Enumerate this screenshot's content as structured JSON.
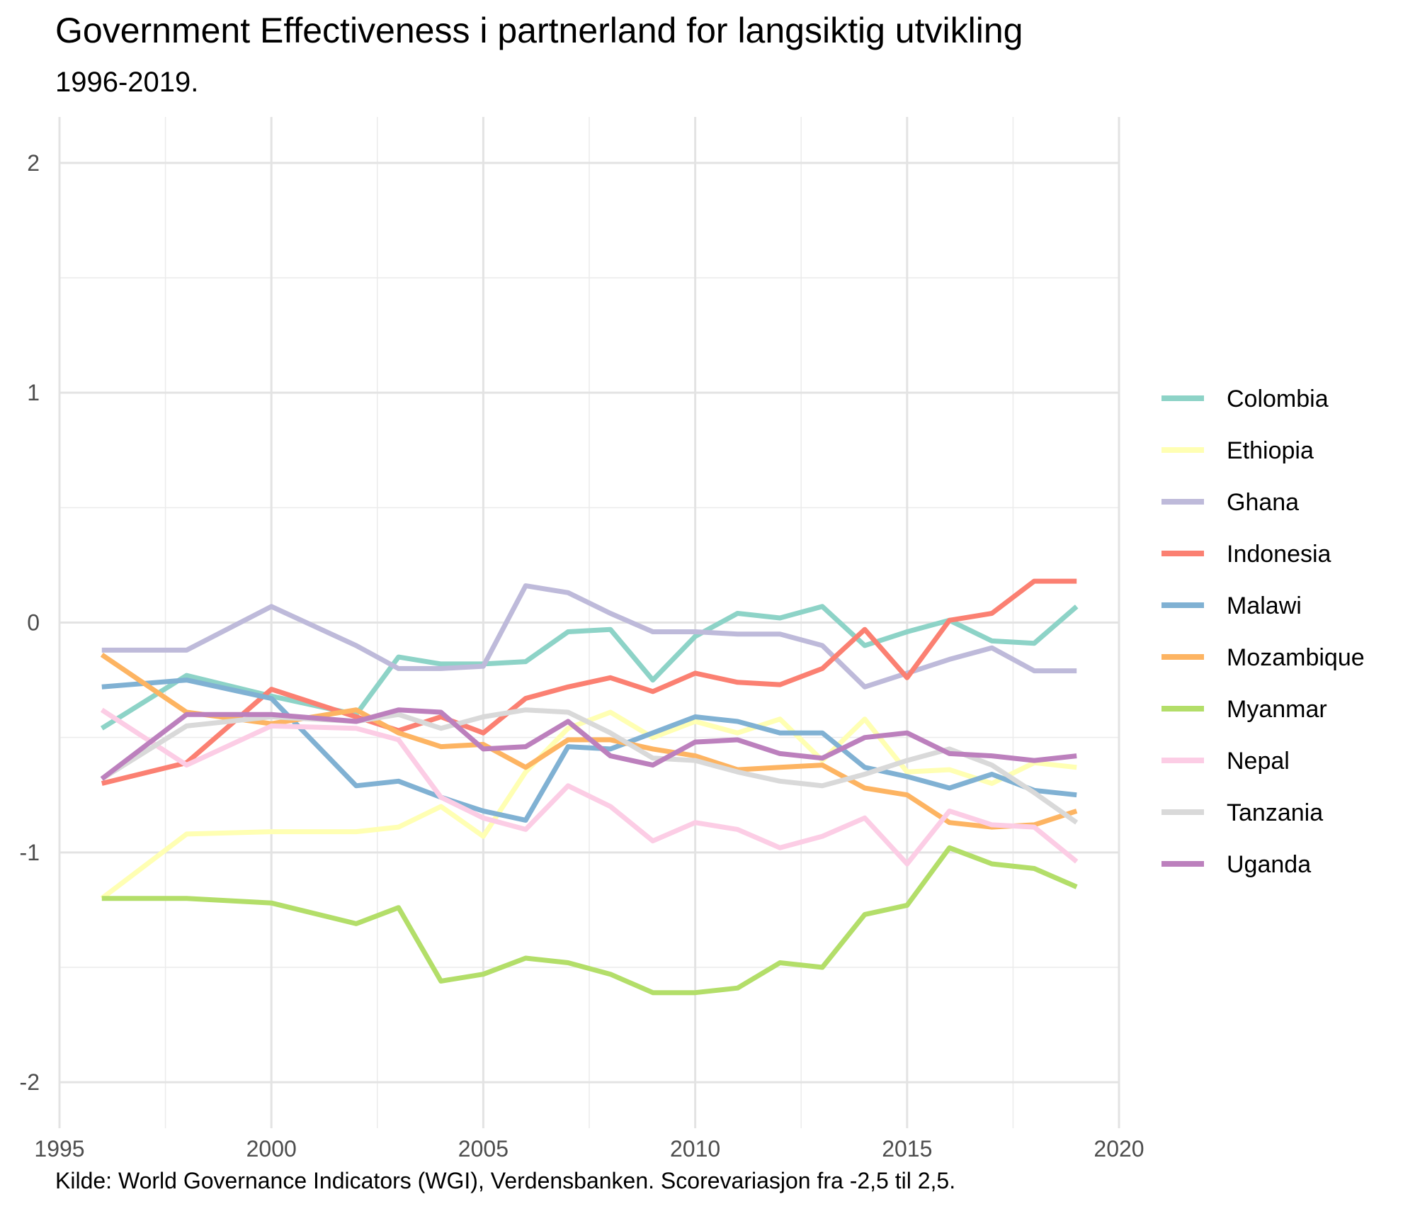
{
  "title": "Government Effectiveness i partnerland for langsiktig utvikling",
  "subtitle": "1996-2019.",
  "caption": "Kilde: World Governance Indicators (WGI), Verdensbanken. Scorevariasjon fra -2,5 til 2,5.",
  "chart_data": {
    "type": "line",
    "title": "Government Effectiveness i partnerland for langsiktig utvikling",
    "subtitle": "1996-2019.",
    "xlabel": "",
    "ylabel": "",
    "xlim": [
      1995,
      2020
    ],
    "ylim": [
      -2.2,
      2.2
    ],
    "x_ticks": [
      1995,
      2000,
      2005,
      2010,
      2015,
      2020
    ],
    "y_ticks": [
      -2,
      -1,
      0,
      1,
      2
    ],
    "grid": true,
    "legend_position": "right",
    "x": [
      1996,
      1998,
      2000,
      2002,
      2003,
      2004,
      2005,
      2006,
      2007,
      2008,
      2009,
      2010,
      2011,
      2012,
      2013,
      2014,
      2015,
      2016,
      2017,
      2018,
      2019
    ],
    "series": [
      {
        "name": "Colombia",
        "color": "#8dd3c7",
        "values": [
          -0.46,
          -0.23,
          -0.32,
          -0.4,
          -0.15,
          -0.18,
          -0.18,
          -0.17,
          -0.04,
          -0.03,
          -0.25,
          -0.06,
          0.04,
          0.02,
          0.07,
          -0.1,
          -0.04,
          0.01,
          -0.08,
          -0.09,
          0.07
        ]
      },
      {
        "name": "Ethiopia",
        "color": "#ffffb3",
        "values": [
          -1.2,
          -0.92,
          -0.91,
          -0.91,
          -0.89,
          -0.8,
          -0.93,
          -0.65,
          -0.46,
          -0.39,
          -0.5,
          -0.43,
          -0.48,
          -0.42,
          -0.6,
          -0.42,
          -0.65,
          -0.64,
          -0.7,
          -0.61,
          -0.63
        ]
      },
      {
        "name": "Ghana",
        "color": "#bebada",
        "values": [
          -0.12,
          -0.12,
          0.07,
          -0.1,
          -0.2,
          -0.2,
          -0.19,
          0.16,
          0.13,
          0.04,
          -0.04,
          -0.04,
          -0.05,
          -0.05,
          -0.1,
          -0.28,
          -0.22,
          -0.16,
          -0.11,
          -0.21,
          -0.21
        ]
      },
      {
        "name": "Indonesia",
        "color": "#fb8072",
        "values": [
          -0.7,
          -0.61,
          -0.29,
          -0.41,
          -0.47,
          -0.41,
          -0.48,
          -0.33,
          -0.28,
          -0.24,
          -0.3,
          -0.22,
          -0.26,
          -0.27,
          -0.2,
          -0.03,
          -0.24,
          0.01,
          0.04,
          0.18,
          0.18
        ]
      },
      {
        "name": "Malawi",
        "color": "#80b1d3",
        "values": [
          -0.28,
          -0.25,
          -0.33,
          -0.71,
          -0.69,
          -0.76,
          -0.82,
          -0.86,
          -0.54,
          -0.55,
          -0.48,
          -0.41,
          -0.43,
          -0.48,
          -0.48,
          -0.63,
          -0.67,
          -0.72,
          -0.66,
          -0.73,
          -0.75
        ]
      },
      {
        "name": "Mozambique",
        "color": "#fdb462",
        "values": [
          -0.14,
          -0.39,
          -0.44,
          -0.38,
          -0.48,
          -0.54,
          -0.53,
          -0.63,
          -0.51,
          -0.51,
          -0.55,
          -0.58,
          -0.64,
          -0.63,
          -0.62,
          -0.72,
          -0.75,
          -0.87,
          -0.89,
          -0.88,
          -0.82
        ]
      },
      {
        "name": "Myanmar",
        "color": "#b3de69",
        "values": [
          -1.2,
          -1.2,
          -1.22,
          -1.31,
          -1.24,
          -1.56,
          -1.53,
          -1.46,
          -1.48,
          -1.53,
          -1.61,
          -1.61,
          -1.59,
          -1.48,
          -1.5,
          -1.27,
          -1.23,
          -0.98,
          -1.05,
          -1.07,
          -1.15
        ]
      },
      {
        "name": "Nepal",
        "color": "#fccde5",
        "values": [
          -0.38,
          -0.62,
          -0.45,
          -0.46,
          -0.51,
          -0.76,
          -0.85,
          -0.9,
          -0.71,
          -0.8,
          -0.95,
          -0.87,
          -0.9,
          -0.98,
          -0.93,
          -0.85,
          -1.05,
          -0.82,
          -0.88,
          -0.89,
          -1.04
        ]
      },
      {
        "name": "Tanzania",
        "color": "#d9d9d9",
        "values": [
          -0.68,
          -0.45,
          -0.41,
          -0.43,
          -0.4,
          -0.46,
          -0.41,
          -0.38,
          -0.39,
          -0.48,
          -0.59,
          -0.6,
          -0.65,
          -0.69,
          -0.71,
          -0.66,
          -0.6,
          -0.55,
          -0.62,
          -0.74,
          -0.87
        ]
      },
      {
        "name": "Uganda",
        "color": "#bc80bd",
        "values": [
          -0.68,
          -0.4,
          -0.4,
          -0.43,
          -0.38,
          -0.39,
          -0.55,
          -0.54,
          -0.43,
          -0.58,
          -0.62,
          -0.52,
          -0.51,
          -0.57,
          -0.59,
          -0.5,
          -0.48,
          -0.57,
          -0.58,
          -0.6,
          -0.58
        ]
      }
    ]
  }
}
